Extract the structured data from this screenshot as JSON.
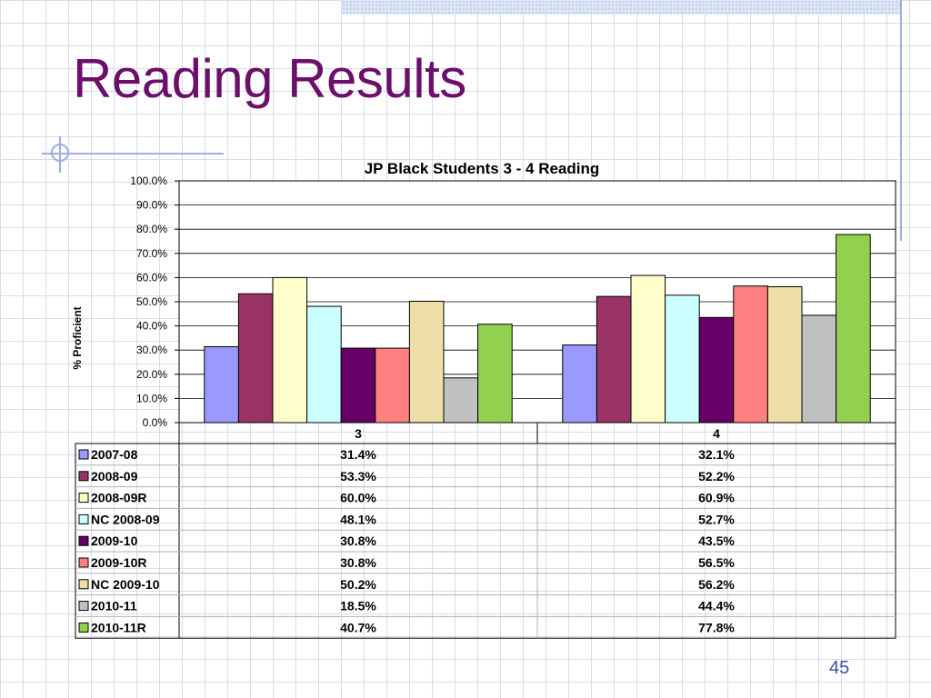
{
  "slide": {
    "title": "Reading Results",
    "page_number": "45"
  },
  "chart_data": {
    "type": "bar",
    "title": "JP Black Students 3 - 4 Reading",
    "ylabel": "% Proficient",
    "xlabel": "",
    "ylim": [
      0,
      100
    ],
    "yticks": [
      "0.0%",
      "10.0%",
      "20.0%",
      "30.0%",
      "40.0%",
      "50.0%",
      "60.0%",
      "70.0%",
      "80.0%",
      "90.0%",
      "100.0%"
    ],
    "categories": [
      "3",
      "4"
    ],
    "grid": true,
    "legend": "data-table",
    "series": [
      {
        "name": "2007-08",
        "color": "#9999ff",
        "values": [
          31.4,
          32.1
        ],
        "labels": [
          "31.4%",
          "32.1%"
        ]
      },
      {
        "name": "2008-09",
        "color": "#993366",
        "values": [
          53.3,
          52.2
        ],
        "labels": [
          "53.3%",
          "52.2%"
        ]
      },
      {
        "name": "2008-09R",
        "color": "#ffffcc",
        "values": [
          60.0,
          60.9
        ],
        "labels": [
          "60.0%",
          "60.9%"
        ]
      },
      {
        "name": "NC 2008-09",
        "color": "#ccffff",
        "values": [
          48.1,
          52.7
        ],
        "labels": [
          "48.1%",
          "52.7%"
        ]
      },
      {
        "name": "2009-10",
        "color": "#660066",
        "values": [
          30.8,
          43.5
        ],
        "labels": [
          "30.8%",
          "43.5%"
        ]
      },
      {
        "name": "2009-10R",
        "color": "#ff8080",
        "values": [
          30.8,
          56.5
        ],
        "labels": [
          "30.8%",
          "56.5%"
        ]
      },
      {
        "name": "NC 2009-10",
        "color": "#eedfa8",
        "values": [
          50.2,
          56.2
        ],
        "labels": [
          "50.2%",
          "56.2%"
        ]
      },
      {
        "name": "2010-11",
        "color": "#c0c0c0",
        "values": [
          18.5,
          44.4
        ],
        "labels": [
          "18.5%",
          "44.4%"
        ]
      },
      {
        "name": "2010-11R",
        "color": "#92d050",
        "values": [
          40.7,
          77.8
        ],
        "labels": [
          "40.7%",
          "77.8%"
        ]
      }
    ]
  }
}
